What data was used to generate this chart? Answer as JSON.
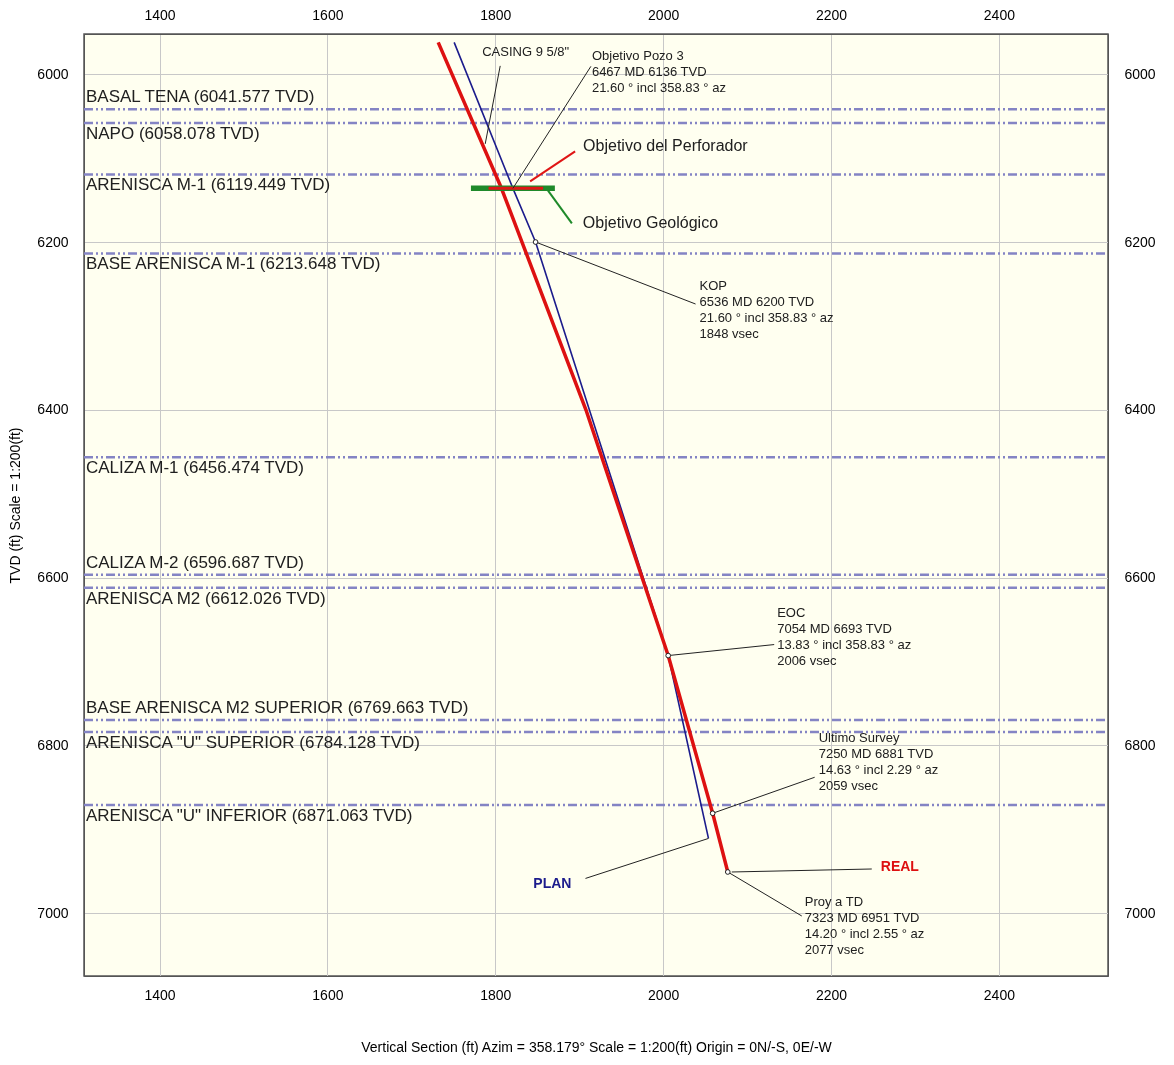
{
  "chart_data": {
    "type": "line",
    "xlabel": "Vertical Section (ft) Azim = 358.179° Scale = 1:200(ft) Origin = 0N/-S, 0E/-W",
    "ylabel": "TVD (ft) Scale = 1:200(ft)",
    "xlim": [
      1310,
      2530
    ],
    "xticks": [
      1400,
      1600,
      1800,
      2000,
      2200,
      2400
    ],
    "x2lim": [
      1310,
      2530
    ],
    "x2ticks": [
      1400,
      1600,
      1800,
      2000,
      2200,
      2400
    ],
    "ylim": [
      7075,
      5952
    ],
    "yticks": [
      6000,
      6200,
      6400,
      6600,
      6800,
      7000
    ],
    "y2lim": [
      7075,
      5952
    ],
    "y2ticks": [
      6000,
      6200,
      6400,
      6600,
      6800,
      7000
    ],
    "grid": true,
    "series": [
      {
        "name": "PLAN",
        "color": "#1c1c8c",
        "x": [
          1751,
          1821,
          1848,
          2006,
          2054
        ],
        "values": [
          5962,
          6136,
          6200,
          6693,
          6911
        ]
      },
      {
        "name": "REAL",
        "color": "#dd1111",
        "x": [
          1732,
          1807,
          1908,
          2006,
          2059,
          2077
        ],
        "values": [
          5962,
          6135,
          6400,
          6693,
          6881,
          6951
        ]
      },
      {
        "name": "Objetivo Geológico",
        "color": "#1f8a2a",
        "x": [
          1771,
          1871
        ],
        "values": [
          6136,
          6136
        ]
      },
      {
        "name": "Objetivo del Perforador",
        "color": "#e01515",
        "x": [
          1792,
          1857
        ],
        "values": [
          6136,
          6136
        ]
      }
    ],
    "ref_lines": [
      {
        "axis": "y",
        "value": 6041.577,
        "label": "BASAL TENA  (6041.577 TVD)",
        "color": "#8484c4",
        "line_style": "dashdot"
      },
      {
        "axis": "y",
        "value": 6058.078,
        "label": "NAPO (6058.078 TVD)",
        "color": "#8484c4",
        "line_style": "dashdot"
      },
      {
        "axis": "y",
        "value": 6119.449,
        "label": "ARENISCA M-1 (6119.449 TVD)",
        "color": "#8484c4",
        "line_style": "dashdot"
      },
      {
        "axis": "y",
        "value": 6213.648,
        "label": "BASE ARENISCA M-1 (6213.648 TVD)",
        "color": "#8484c4",
        "line_style": "dashdot"
      },
      {
        "axis": "y",
        "value": 6456.474,
        "label": "CALIZA M-1 (6456.474 TVD)",
        "color": "#8484c4",
        "line_style": "dashdot"
      },
      {
        "axis": "y",
        "value": 6596.687,
        "label": "CALIZA M-2 (6596.687 TVD)",
        "color": "#8484c4",
        "line_style": "dashdot"
      },
      {
        "axis": "y",
        "value": 6612.026,
        "label": "ARENISCA M2 (6612.026 TVD)",
        "color": "#8484c4",
        "line_style": "dashdot"
      },
      {
        "axis": "y",
        "value": 6769.663,
        "label": "BASE ARENISCA M2 SUPERIOR (6769.663 TVD)",
        "color": "#8484c4",
        "line_style": "dashdot"
      },
      {
        "axis": "y",
        "value": 6784.128,
        "label": "ARENISCA \"U\" SUPERIOR (6784.128 TVD)",
        "color": "#8484c4",
        "line_style": "dashdot"
      },
      {
        "axis": "y",
        "value": 6871.063,
        "label": "ARENISCA \"U\" INFERIOR (6871.063 TVD)",
        "color": "#8484c4",
        "line_style": "dashdot"
      }
    ],
    "annotations": [
      {
        "text": "CASING 9 5/8\"",
        "x": 1788,
        "y": 6083
      },
      {
        "text": "Objetivo Pozo 3\n6467 MD 6136 TVD\n21.60 ° incl 358.83 ° az",
        "x": 1821,
        "y": 6136
      },
      {
        "text": "KOP\n6536 MD 6200 TVD\n21.60 ° incl 358.83 ° az\n1848 vsec",
        "x": 1848,
        "y": 6200
      },
      {
        "text": "EOC\n7054 MD 6693 TVD\n13.83 ° incl 358.83 ° az\n2006 vsec",
        "x": 2006,
        "y": 6693
      },
      {
        "text": "Ultimo Survey\n7250 MD 6881 TVD\n14.63 ° incl 2.29 ° az\n2059 vsec",
        "x": 2059,
        "y": 6881
      },
      {
        "text": "Proy a TD\n7323 MD 6951 TVD\n14.20 ° incl 2.55 ° az\n2077 vsec",
        "x": 2077,
        "y": 6951
      }
    ]
  }
}
